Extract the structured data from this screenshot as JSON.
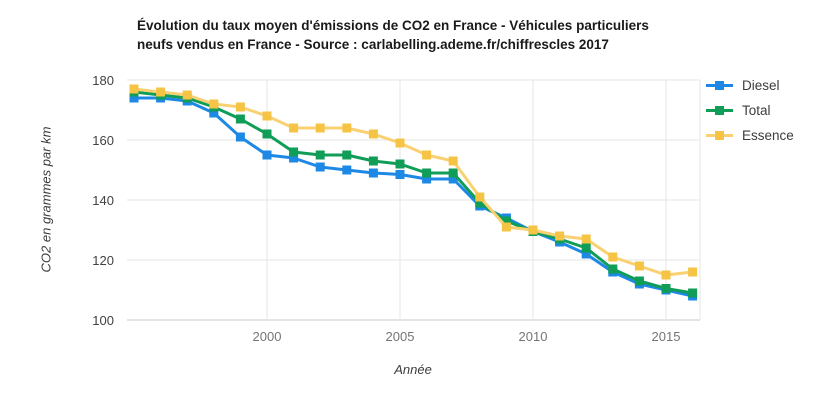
{
  "title": {
    "line1": "Évolution du taux moyen d'émissions de CO2 en France - Véhicules particuliers",
    "line2": "neufs vendus en France - Source : carlabelling.ademe.fr/chiffrescles 2017"
  },
  "axes": {
    "y_title": "CO2 en grammes par km",
    "x_title": "Année"
  },
  "chart_data": {
    "type": "line",
    "title": "Évolution du taux moyen d'émissions de CO2 en France - Véhicules particuliers neufs vendus en France - Source : carlabelling.ademe.fr/chiffrescles 2017",
    "xlabel": "Année",
    "ylabel": "CO2 en grammes par km",
    "x": [
      1995,
      1996,
      1997,
      1998,
      1999,
      2000,
      2001,
      2002,
      2003,
      2004,
      2005,
      2006,
      2007,
      2008,
      2009,
      2010,
      2011,
      2012,
      2013,
      2014,
      2015,
      2016
    ],
    "xlim": [
      1995,
      2016
    ],
    "ylim": [
      100,
      180
    ],
    "y_ticks": [
      180,
      160,
      140,
      120,
      100
    ],
    "x_ticks": [
      2000,
      2005,
      2010,
      2015
    ],
    "grid": true,
    "legend_position": "right",
    "marker": "square",
    "series": [
      {
        "name": "Diesel",
        "color": "#1E88E5",
        "values": [
          174,
          174,
          173,
          169,
          161,
          155,
          154,
          151,
          150,
          149,
          148.5,
          147,
          147,
          138,
          134,
          129.5,
          126,
          122,
          116,
          112,
          110,
          108
        ]
      },
      {
        "name": "Total",
        "color": "#0F9D58",
        "values": [
          176,
          175,
          174,
          171,
          167,
          162,
          156,
          155,
          155,
          153,
          152,
          149,
          149,
          139,
          133,
          129.5,
          127,
          124,
          117,
          113,
          110.5,
          109
        ]
      },
      {
        "name": "Essence",
        "color": "#F6C445",
        "line_color": "#FAD172",
        "values": [
          177,
          176,
          175,
          172,
          171,
          168,
          164,
          164,
          164,
          162,
          159,
          155,
          153,
          141,
          131,
          130,
          128,
          127,
          121,
          118,
          115,
          116
        ]
      }
    ]
  }
}
